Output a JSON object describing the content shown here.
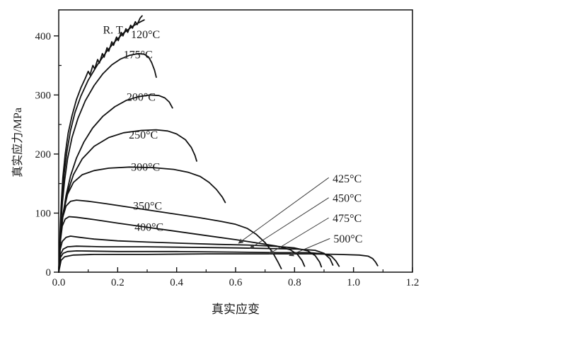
{
  "colors": {
    "background": "#ffffff",
    "axis": "#111111",
    "curve": "#111111",
    "leader": "#3a3a3a",
    "text": "#1a1a1a"
  },
  "chart_data": {
    "type": "line",
    "title": "",
    "xlabel": "真实应变",
    "ylabel": "真实应力/MPa",
    "xlim": [
      0,
      1.2
    ],
    "ylim": [
      0,
      444
    ],
    "grid": false,
    "legend": "inline-labels",
    "x_major_ticks": [
      {
        "v": 0.0,
        "label": "0.0"
      },
      {
        "v": 0.2,
        "label": "0.2"
      },
      {
        "v": 0.4,
        "label": "0.4"
      },
      {
        "v": 0.6,
        "label": "0.6"
      },
      {
        "v": 0.8,
        "label": "0.8"
      },
      {
        "v": 1.0,
        "label": "1.0"
      },
      {
        "v": 1.2,
        "label": "1.2"
      }
    ],
    "x_minor_ticks": [
      0.1,
      0.3,
      0.5,
      0.7,
      0.9,
      1.1
    ],
    "y_major_ticks": [
      {
        "v": 0,
        "label": "0"
      },
      {
        "v": 100,
        "label": "100"
      },
      {
        "v": 200,
        "label": "200"
      },
      {
        "v": 300,
        "label": "300"
      },
      {
        "v": 400,
        "label": "400"
      }
    ],
    "y_minor_ticks": [
      50,
      150,
      250,
      350
    ],
    "series": [
      {
        "id": "rt",
        "name": "R.T.",
        "points": [
          [
            0,
            0
          ],
          [
            0.004,
            60
          ],
          [
            0.008,
            110
          ],
          [
            0.014,
            160
          ],
          [
            0.022,
            200
          ],
          [
            0.032,
            235
          ],
          [
            0.045,
            265
          ],
          [
            0.06,
            292
          ],
          [
            0.075,
            312
          ],
          [
            0.09,
            328
          ],
          [
            0.1,
            340
          ],
          [
            0.106,
            334
          ],
          [
            0.116,
            350
          ],
          [
            0.122,
            344
          ],
          [
            0.132,
            360
          ],
          [
            0.138,
            354
          ],
          [
            0.148,
            370
          ],
          [
            0.154,
            364
          ],
          [
            0.164,
            380
          ],
          [
            0.17,
            374
          ],
          [
            0.18,
            390
          ],
          [
            0.186,
            384
          ],
          [
            0.196,
            398
          ],
          [
            0.202,
            392
          ],
          [
            0.212,
            406
          ],
          [
            0.218,
            400
          ],
          [
            0.228,
            412
          ],
          [
            0.234,
            406
          ],
          [
            0.244,
            418
          ],
          [
            0.25,
            413
          ],
          [
            0.26,
            424
          ],
          [
            0.266,
            419
          ],
          [
            0.276,
            430
          ],
          [
            0.283,
            434
          ]
        ]
      },
      {
        "id": "120c",
        "name": "120°C",
        "points": [
          [
            0,
            0
          ],
          [
            0.005,
            65
          ],
          [
            0.01,
            115
          ],
          [
            0.018,
            165
          ],
          [
            0.028,
            205
          ],
          [
            0.04,
            240
          ],
          [
            0.055,
            270
          ],
          [
            0.075,
            298
          ],
          [
            0.1,
            325
          ],
          [
            0.13,
            350
          ],
          [
            0.16,
            372
          ],
          [
            0.19,
            390
          ],
          [
            0.22,
            405
          ],
          [
            0.25,
            416
          ],
          [
            0.27,
            422
          ],
          [
            0.29,
            427
          ]
        ]
      },
      {
        "id": "175c",
        "name": "175°C",
        "points": [
          [
            0,
            0
          ],
          [
            0.006,
            70
          ],
          [
            0.012,
            115
          ],
          [
            0.02,
            155
          ],
          [
            0.03,
            192
          ],
          [
            0.045,
            228
          ],
          [
            0.065,
            260
          ],
          [
            0.09,
            290
          ],
          [
            0.12,
            316
          ],
          [
            0.15,
            336
          ],
          [
            0.18,
            351
          ],
          [
            0.21,
            361
          ],
          [
            0.24,
            367
          ],
          [
            0.27,
            370
          ],
          [
            0.29,
            369
          ],
          [
            0.305,
            364
          ],
          [
            0.315,
            355
          ],
          [
            0.325,
            342
          ],
          [
            0.331,
            330
          ]
        ]
      },
      {
        "id": "200c",
        "name": "200°C",
        "points": [
          [
            0,
            0
          ],
          [
            0.006,
            55
          ],
          [
            0.014,
            95
          ],
          [
            0.025,
            130
          ],
          [
            0.04,
            163
          ],
          [
            0.06,
            193
          ],
          [
            0.085,
            220
          ],
          [
            0.115,
            244
          ],
          [
            0.15,
            264
          ],
          [
            0.19,
            280
          ],
          [
            0.23,
            291
          ],
          [
            0.27,
            297
          ],
          [
            0.31,
            300
          ],
          [
            0.34,
            299
          ],
          [
            0.36,
            295
          ],
          [
            0.375,
            288
          ],
          [
            0.386,
            278
          ]
        ]
      },
      {
        "id": "250c",
        "name": "250°C",
        "points": [
          [
            0,
            0
          ],
          [
            0.006,
            60
          ],
          [
            0.015,
            100
          ],
          [
            0.03,
            135
          ],
          [
            0.05,
            165
          ],
          [
            0.08,
            192
          ],
          [
            0.12,
            213
          ],
          [
            0.17,
            228
          ],
          [
            0.22,
            236
          ],
          [
            0.28,
            240
          ],
          [
            0.33,
            241
          ],
          [
            0.37,
            239
          ],
          [
            0.4,
            234
          ],
          [
            0.43,
            224
          ],
          [
            0.45,
            211
          ],
          [
            0.462,
            198
          ],
          [
            0.468,
            188
          ]
        ]
      },
      {
        "id": "300c",
        "name": "300°C",
        "points": [
          [
            0,
            0
          ],
          [
            0.006,
            60
          ],
          [
            0.015,
            100
          ],
          [
            0.03,
            132
          ],
          [
            0.05,
            152
          ],
          [
            0.08,
            165
          ],
          [
            0.12,
            172
          ],
          [
            0.17,
            176
          ],
          [
            0.24,
            178
          ],
          [
            0.32,
            177
          ],
          [
            0.39,
            174
          ],
          [
            0.44,
            169
          ],
          [
            0.48,
            162
          ],
          [
            0.51,
            152
          ],
          [
            0.535,
            140
          ],
          [
            0.555,
            127
          ],
          [
            0.565,
            118
          ]
        ]
      },
      {
        "id": "350c",
        "name": "350°C",
        "points": [
          [
            0,
            0
          ],
          [
            0.005,
            55
          ],
          [
            0.012,
            90
          ],
          [
            0.025,
            112
          ],
          [
            0.04,
            120
          ],
          [
            0.06,
            122
          ],
          [
            0.1,
            120
          ],
          [
            0.16,
            116
          ],
          [
            0.24,
            110
          ],
          [
            0.32,
            104
          ],
          [
            0.4,
            98
          ],
          [
            0.48,
            92
          ],
          [
            0.55,
            86
          ],
          [
            0.6,
            81
          ],
          [
            0.64,
            74
          ],
          [
            0.67,
            64
          ],
          [
            0.7,
            50
          ],
          [
            0.725,
            34
          ],
          [
            0.745,
            16
          ],
          [
            0.755,
            6
          ]
        ]
      },
      {
        "id": "400c",
        "name": "400°C",
        "points": [
          [
            0,
            0
          ],
          [
            0.005,
            50
          ],
          [
            0.012,
            78
          ],
          [
            0.022,
            90
          ],
          [
            0.035,
            94
          ],
          [
            0.06,
            93
          ],
          [
            0.12,
            89
          ],
          [
            0.2,
            83
          ],
          [
            0.3,
            76
          ],
          [
            0.4,
            69
          ],
          [
            0.5,
            62
          ],
          [
            0.6,
            55
          ],
          [
            0.68,
            49
          ],
          [
            0.74,
            44
          ],
          [
            0.785,
            38
          ],
          [
            0.81,
            30
          ],
          [
            0.825,
            20
          ],
          [
            0.834,
            10
          ]
        ]
      },
      {
        "id": "425c",
        "name": "425°C",
        "points": [
          [
            0,
            0
          ],
          [
            0.005,
            38
          ],
          [
            0.012,
            52
          ],
          [
            0.025,
            59
          ],
          [
            0.04,
            61
          ],
          [
            0.07,
            59
          ],
          [
            0.12,
            56
          ],
          [
            0.2,
            53
          ],
          [
            0.3,
            51
          ],
          [
            0.42,
            49
          ],
          [
            0.54,
            47
          ],
          [
            0.64,
            46
          ],
          [
            0.73,
            44
          ],
          [
            0.8,
            41
          ],
          [
            0.845,
            36
          ],
          [
            0.87,
            28
          ],
          [
            0.885,
            17
          ],
          [
            0.891,
            9
          ]
        ]
      },
      {
        "id": "450c",
        "name": "450°C",
        "points": [
          [
            0,
            0
          ],
          [
            0.006,
            30
          ],
          [
            0.015,
            39
          ],
          [
            0.03,
            43
          ],
          [
            0.06,
            44
          ],
          [
            0.15,
            43
          ],
          [
            0.3,
            43
          ],
          [
            0.45,
            42
          ],
          [
            0.6,
            41
          ],
          [
            0.72,
            40
          ],
          [
            0.81,
            39
          ],
          [
            0.87,
            37
          ],
          [
            0.9,
            32
          ],
          [
            0.92,
            23
          ],
          [
            0.93,
            12
          ]
        ]
      },
      {
        "id": "475c",
        "name": "475°C",
        "points": [
          [
            0,
            0
          ],
          [
            0.006,
            25
          ],
          [
            0.015,
            32
          ],
          [
            0.03,
            35
          ],
          [
            0.06,
            36
          ],
          [
            0.2,
            35
          ],
          [
            0.4,
            35
          ],
          [
            0.6,
            34
          ],
          [
            0.75,
            33
          ],
          [
            0.85,
            33
          ],
          [
            0.9,
            31
          ],
          [
            0.925,
            27
          ],
          [
            0.94,
            19
          ],
          [
            0.951,
            10
          ]
        ]
      },
      {
        "id": "500c",
        "name": "500°C",
        "points": [
          [
            0,
            0
          ],
          [
            0.008,
            20
          ],
          [
            0.02,
            26
          ],
          [
            0.05,
            29
          ],
          [
            0.12,
            30
          ],
          [
            0.3,
            30
          ],
          [
            0.5,
            31
          ],
          [
            0.7,
            31
          ],
          [
            0.85,
            31
          ],
          [
            0.95,
            30
          ],
          [
            1.02,
            29
          ],
          [
            1.05,
            27
          ],
          [
            1.065,
            23
          ],
          [
            1.075,
            17
          ],
          [
            1.082,
            11
          ]
        ]
      }
    ],
    "inline_labels": [
      {
        "id": "rt",
        "text": "R. T",
        "x": 0.15,
        "y": 404
      },
      {
        "id": "120c",
        "text": "120°C",
        "x": 0.245,
        "y": 396
      },
      {
        "id": "175c",
        "text": "175°C",
        "x": 0.22,
        "y": 362
      },
      {
        "id": "200c",
        "text": "200°C",
        "x": 0.23,
        "y": 290
      },
      {
        "id": "250c",
        "text": "250°C",
        "x": 0.238,
        "y": 226
      },
      {
        "id": "300c",
        "text": "300°C",
        "x": 0.245,
        "y": 172
      },
      {
        "id": "350c",
        "text": "350°C",
        "x": 0.252,
        "y": 106
      },
      {
        "id": "400c",
        "text": "400°C",
        "x": 0.257,
        "y": 70
      },
      {
        "id": "425c",
        "text": "425°C",
        "x": 0.929,
        "y": 152
      },
      {
        "id": "450c",
        "text": "450°C",
        "x": 0.929,
        "y": 119
      },
      {
        "id": "475c",
        "text": "475°C",
        "x": 0.929,
        "y": 85
      },
      {
        "id": "500c",
        "text": "500°C",
        "x": 0.932,
        "y": 50
      }
    ],
    "leader_arrows": [
      {
        "for": "425c",
        "from": [
          0.916,
          160
        ],
        "to": [
          0.61,
          49
        ]
      },
      {
        "for": "450c",
        "from": [
          0.916,
          126
        ],
        "to": [
          0.648,
          40
        ]
      },
      {
        "for": "475c",
        "from": [
          0.916,
          92
        ],
        "to": [
          0.714,
          31
        ]
      },
      {
        "for": "500c",
        "from": [
          0.92,
          57
        ],
        "to": [
          0.782,
          28
        ]
      }
    ]
  }
}
